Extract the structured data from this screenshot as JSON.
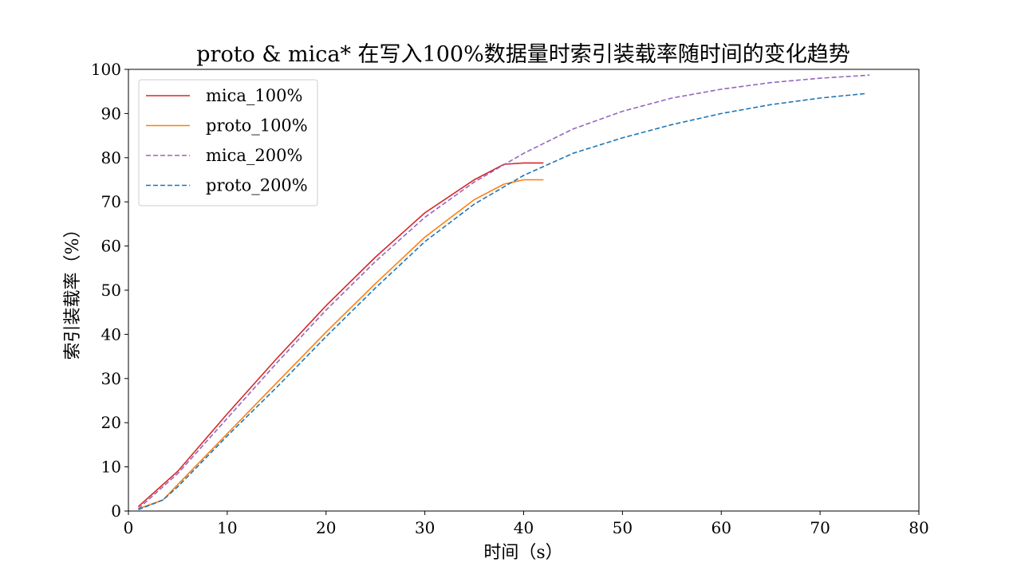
{
  "chart_data": {
    "type": "line",
    "title": "proto & mica* 在写入100%数据量时索引装载率随时间的变化趋势",
    "xlabel": "时间（s）",
    "ylabel": "索引装载率（%）",
    "xlim": [
      0,
      80
    ],
    "ylim": [
      0,
      100
    ],
    "xticks": [
      0,
      10,
      20,
      30,
      40,
      50,
      60,
      70,
      80
    ],
    "yticks": [
      0,
      10,
      20,
      30,
      40,
      50,
      60,
      70,
      80,
      90,
      100
    ],
    "grid": false,
    "legend_position": "upper-left",
    "series": [
      {
        "name": "mica_100%",
        "color": "#d62728",
        "style": "solid",
        "x": [
          1,
          5,
          10,
          15,
          20,
          25,
          30,
          35,
          38,
          40,
          42
        ],
        "y": [
          1,
          9,
          22,
          34.5,
          46.5,
          57.5,
          67.5,
          75,
          78.5,
          78.8,
          78.8
        ]
      },
      {
        "name": "proto_100%",
        "color": "#ff7f0e",
        "style": "solid",
        "x": [
          1,
          3.5,
          5,
          10,
          15,
          20,
          25,
          30,
          35,
          38,
          40,
          42
        ],
        "y": [
          0.5,
          2.5,
          6,
          17.5,
          29,
          40.5,
          51.5,
          62,
          70.5,
          74,
          75,
          75
        ]
      },
      {
        "name": "mica_200%",
        "color": "#9467bd",
        "style": "dashed",
        "x": [
          1,
          5,
          10,
          15,
          20,
          25,
          30,
          35,
          40,
          45,
          50,
          55,
          60,
          65,
          70,
          75
        ],
        "y": [
          0.5,
          8.5,
          21,
          33.5,
          45.5,
          56.5,
          66.5,
          74.5,
          81,
          86.5,
          90.5,
          93.5,
          95.5,
          97,
          98,
          98.7
        ]
      },
      {
        "name": "proto_200%",
        "color": "#1f77b4",
        "style": "dashed",
        "x": [
          1,
          3.5,
          5,
          10,
          15,
          20,
          25,
          30,
          35,
          40,
          45,
          50,
          55,
          60,
          65,
          70,
          74.5
        ],
        "y": [
          0.3,
          2.5,
          5.5,
          17,
          28,
          39.5,
          50.5,
          61,
          69.5,
          76,
          81,
          84.5,
          87.5,
          90,
          92,
          93.5,
          94.5
        ]
      }
    ]
  }
}
